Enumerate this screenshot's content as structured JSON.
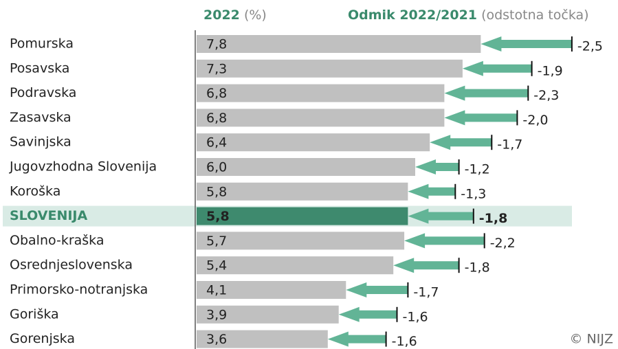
{
  "chart_data": {
    "type": "arrow-bar",
    "header_value": "2022",
    "header_value_unit": "(%)",
    "header_change": "Odmik 2022/2021",
    "header_change_unit": "(odstotna točka)",
    "credit": "© NIJZ",
    "categories": [
      "Pomurska",
      "Posavska",
      "Podravska",
      "Zasavska",
      "Savinjska",
      "Jugovzhodna Slovenija",
      "Koroška",
      "SLOVENIJA",
      "Obalno-kraška",
      "Osrednjeslovenska",
      "Primorsko-notranjska",
      "Goriška",
      "Gorenjska"
    ],
    "highlight": 7,
    "series": [
      {
        "name": "2022",
        "color": "#c0c0c0",
        "highlight_color": "#3e8a6e",
        "values": [
          7.8,
          7.3,
          6.8,
          6.8,
          6.4,
          6.0,
          5.8,
          5.8,
          5.7,
          5.4,
          4.1,
          3.9,
          3.6
        ],
        "value_labels": [
          "7,8",
          "7,3",
          "6,8",
          "6,8",
          "6,4",
          "6,0",
          "5,8",
          "5,8",
          "5,7",
          "5,4",
          "4,1",
          "3,9",
          "3,6"
        ]
      },
      {
        "name": "Odmik 2022/2021",
        "color": "#62b496",
        "values": [
          -2.5,
          -1.9,
          -2.3,
          -2.0,
          -1.7,
          -1.2,
          -1.3,
          -1.8,
          -2.2,
          -1.8,
          -1.7,
          -1.6,
          -1.6
        ],
        "value_labels": [
          "-2,5",
          "-1,9",
          "-2,3",
          "-2,0",
          "-1,7",
          "-1,2",
          "-1,3",
          "-1,8",
          "-2,2",
          "-1,8",
          "-1,7",
          "-1,6",
          "-1,6"
        ]
      }
    ]
  }
}
